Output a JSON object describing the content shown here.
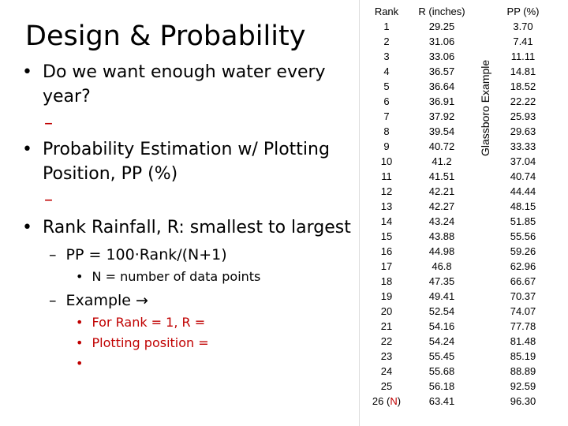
{
  "slide": {
    "title": "Design & Probability",
    "bullets": [
      {
        "marker": "•",
        "text": "Do we want enough water every",
        "text2": "year?"
      },
      {
        "marker": "•",
        "text": "Probability Estimation w/ Plotting",
        "text2": "Position, PP (%)"
      },
      {
        "marker": "•",
        "text": "Rank Rainfall, R: smallest to largest"
      }
    ],
    "dash": "–",
    "pp_formula": "PP = 100·Rank/(N+1)",
    "n_note_marker": "•",
    "n_note": "N = number of data points",
    "example_label": "Example →",
    "example_items": [
      {
        "marker": "•",
        "text": "For Rank = 1, R ="
      },
      {
        "marker": "•",
        "text": "Plotting position ="
      },
      {
        "marker": "•",
        "text": ""
      }
    ]
  },
  "table": {
    "headers": {
      "rank": "Rank",
      "r": "R (inches)",
      "pp": "PP (%)"
    },
    "vertical_label": "Glassboro Example",
    "rank": [
      "1",
      "2",
      "3",
      "4",
      "5",
      "6",
      "7",
      "8",
      "9",
      "10",
      "11",
      "12",
      "13",
      "14",
      "15",
      "16",
      "17",
      "18",
      "19",
      "20",
      "21",
      "22",
      "23",
      "24",
      "25",
      "26 ("
    ],
    "rank_last_n": "N",
    "rank_last_close": ")",
    "r": [
      "29.25",
      "31.06",
      "33.06",
      "36.57",
      "36.64",
      "36.91",
      "37.92",
      "39.54",
      "40.72",
      "41.2",
      "41.51",
      "42.21",
      "42.27",
      "43.24",
      "43.88",
      "44.98",
      "46.8",
      "47.35",
      "49.41",
      "52.54",
      "54.16",
      "54.24",
      "55.45",
      "55.68",
      "56.18",
      "63.41"
    ],
    "pp": [
      "3.70",
      "7.41",
      "11.11",
      "14.81",
      "18.52",
      "22.22",
      "25.93",
      "29.63",
      "33.33",
      "37.04",
      "40.74",
      "44.44",
      "48.15",
      "51.85",
      "55.56",
      "59.26",
      "62.96",
      "66.67",
      "70.37",
      "74.07",
      "77.78",
      "81.48",
      "85.19",
      "88.89",
      "92.59",
      "96.30"
    ]
  },
  "colors": {
    "accent_red": "#c00000"
  }
}
